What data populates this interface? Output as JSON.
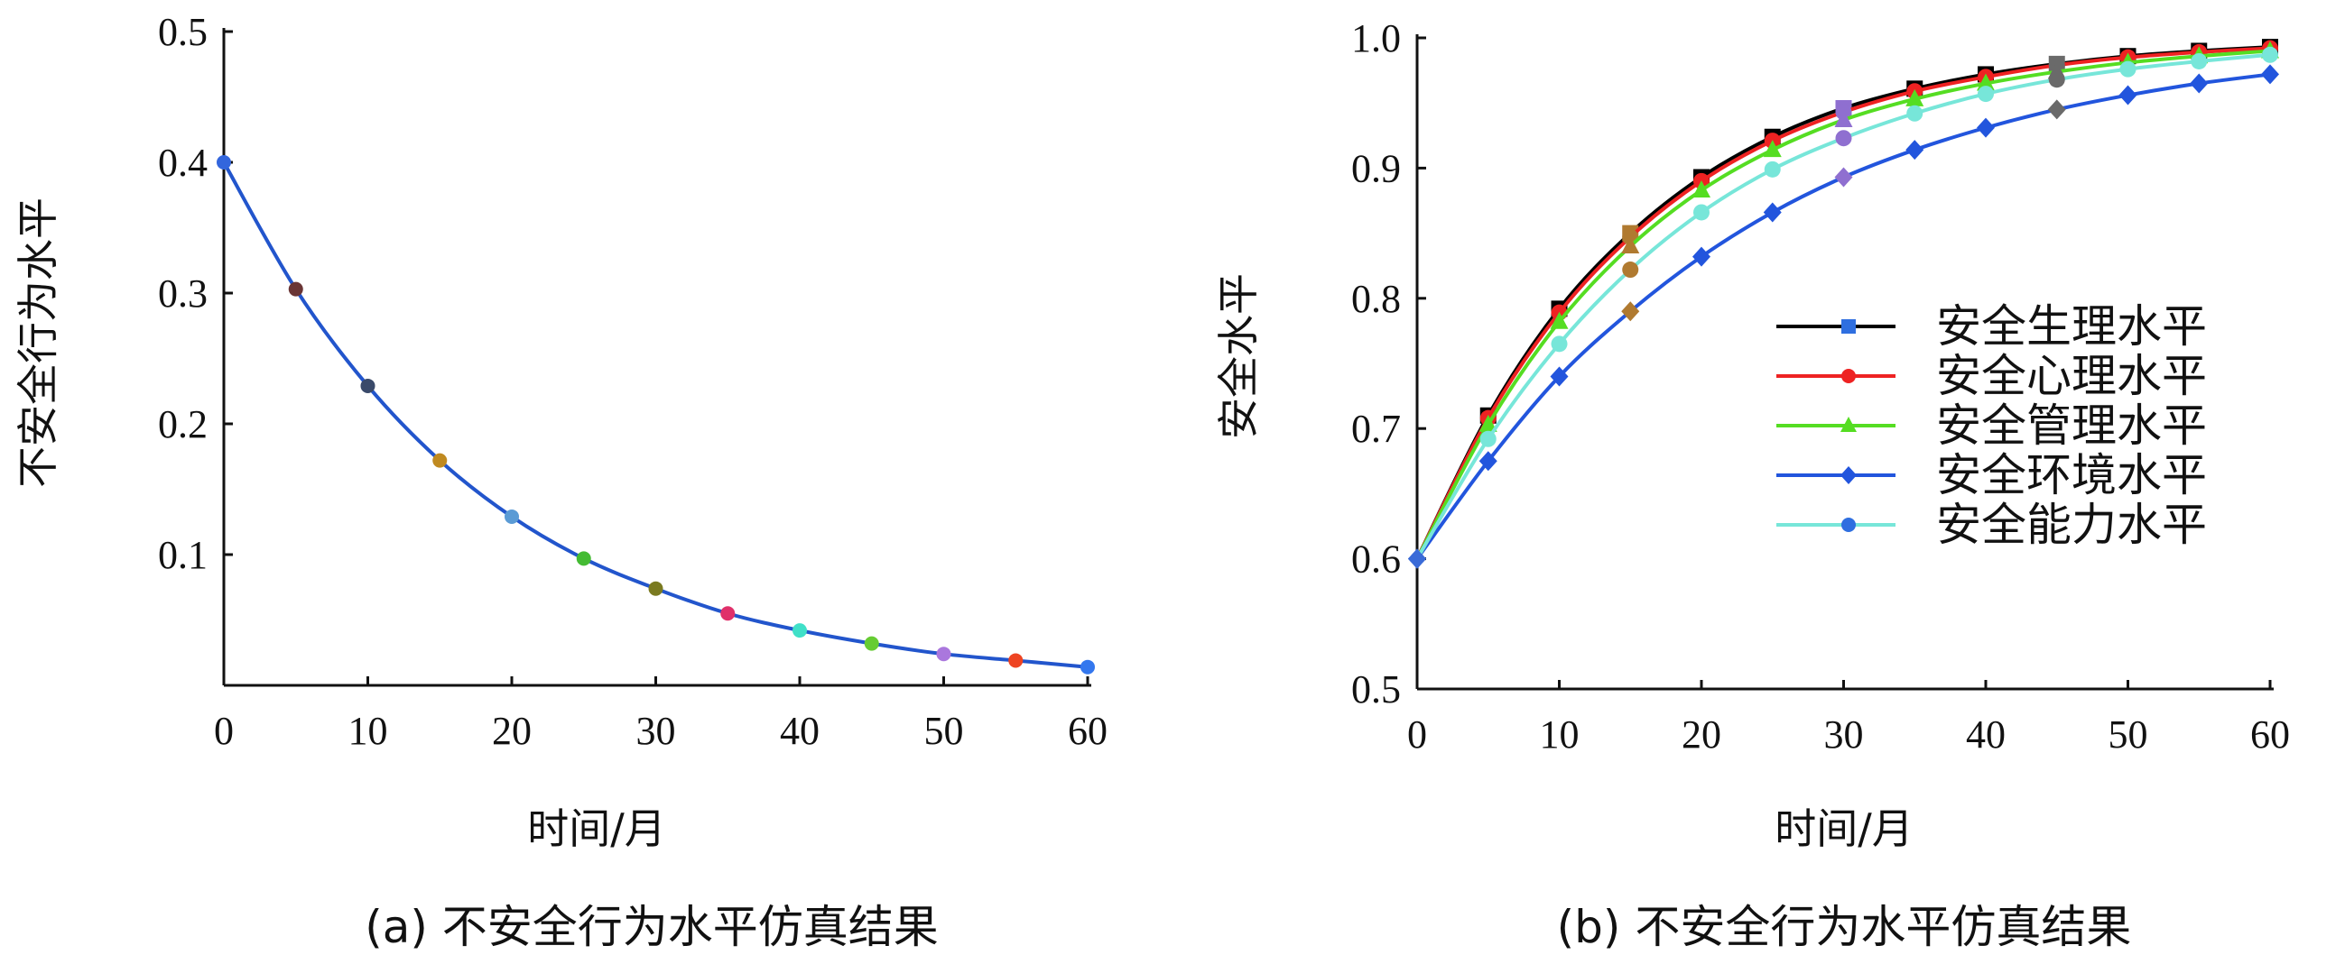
{
  "chart_data": [
    {
      "type": "line",
      "caption": "(a) 不安全行为水平仿真结果",
      "xlabel": "时间/月",
      "ylabel": "不安全行为水平",
      "xlim": [
        0,
        60
      ],
      "ylim": [
        0,
        0.5
      ],
      "xticks": [
        "0",
        "10",
        "20",
        "30",
        "40",
        "50",
        "60"
      ],
      "yticks": [
        "0.1",
        "0.2",
        "0.3",
        "0.4",
        "0.5"
      ],
      "grid": false,
      "series": [
        {
          "color": "#2255cc",
          "x": [
            0,
            5,
            10,
            15,
            20,
            25,
            30,
            35,
            40,
            45,
            50,
            55,
            60
          ],
          "y": [
            0.4,
            0.303,
            0.229,
            0.172,
            0.129,
            0.097,
            0.074,
            0.055,
            0.042,
            0.032,
            0.024,
            0.019,
            0.014
          ]
        }
      ],
      "marker_colors": [
        "#3366dd",
        "#6a3535",
        "#3a4a6a",
        "#c08a20",
        "#5b9bd5",
        "#44bb33",
        "#7a7a20",
        "#e0306a",
        "#40e0c8",
        "#66cc33",
        "#aa77dd",
        "#ee4422",
        "#3377ee"
      ]
    },
    {
      "type": "line",
      "caption": "(b) 不安全行为水平仿真结果",
      "xlabel": "时间/月",
      "ylabel": "安全水平",
      "xlim": [
        0,
        60
      ],
      "ylim": [
        0.5,
        1.0
      ],
      "xticks": [
        "0",
        "10",
        "20",
        "30",
        "40",
        "50",
        "60"
      ],
      "yticks": [
        "0.5",
        "0.6",
        "0.7",
        "0.8",
        "0.9",
        "1.0"
      ],
      "grid": false,
      "legend_position": "right-center",
      "series": [
        {
          "name": "安全生理水平",
          "color": "#000000",
          "marker": "square",
          "x": [
            0,
            5,
            10,
            15,
            20,
            25,
            30,
            35,
            40,
            45,
            50,
            55,
            60
          ],
          "y": [
            0.6,
            0.71,
            0.792,
            0.85,
            0.893,
            0.924,
            0.946,
            0.961,
            0.972,
            0.98,
            0.986,
            0.99,
            0.993
          ]
        },
        {
          "name": "安全心理水平",
          "color": "#ee2222",
          "marker": "circle",
          "x": [
            0,
            5,
            10,
            15,
            20,
            25,
            30,
            35,
            40,
            45,
            50,
            55,
            60
          ],
          "y": [
            0.6,
            0.708,
            0.789,
            0.847,
            0.89,
            0.921,
            0.943,
            0.959,
            0.97,
            0.979,
            0.985,
            0.989,
            0.992
          ]
        },
        {
          "name": "安全管理水平",
          "color": "#55dd22",
          "marker": "triangle",
          "x": [
            0,
            5,
            10,
            15,
            20,
            25,
            30,
            35,
            40,
            45,
            50,
            55,
            60
          ],
          "y": [
            0.6,
            0.703,
            0.782,
            0.84,
            0.883,
            0.914,
            0.937,
            0.953,
            0.965,
            0.974,
            0.981,
            0.986,
            0.99
          ]
        },
        {
          "name": "安全环境水平",
          "color": "#2255dd",
          "marker": "diamond",
          "x": [
            0,
            5,
            10,
            15,
            20,
            25,
            30,
            35,
            40,
            45,
            50,
            55,
            60
          ],
          "y": [
            0.6,
            0.675,
            0.74,
            0.79,
            0.832,
            0.866,
            0.893,
            0.914,
            0.931,
            0.945,
            0.956,
            0.965,
            0.972
          ]
        },
        {
          "name": "安全能力水平",
          "color": "#77e6d9",
          "marker": "circle",
          "x": [
            0,
            5,
            10,
            15,
            20,
            25,
            30,
            35,
            40,
            45,
            50,
            55,
            60
          ],
          "y": [
            0.6,
            0.692,
            0.765,
            0.822,
            0.866,
            0.899,
            0.923,
            0.942,
            0.957,
            0.968,
            0.976,
            0.982,
            0.987
          ]
        }
      ]
    }
  ]
}
